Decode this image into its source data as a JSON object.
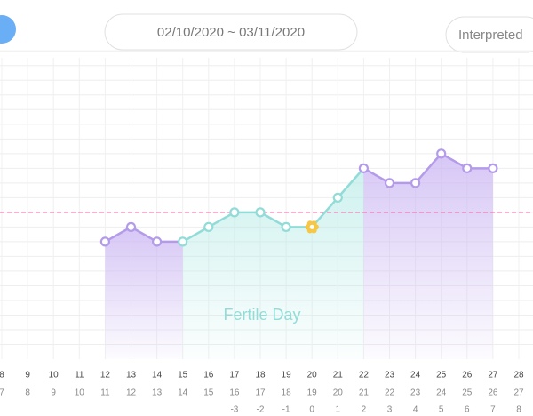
{
  "header": {
    "date_range": "02/10/2020 ~ 03/11/2020",
    "interpreted_button": "Interpreted"
  },
  "chart_data": {
    "type": "line",
    "x": [
      8,
      9,
      10,
      11,
      12,
      13,
      14,
      15,
      16,
      17,
      18,
      19,
      20,
      21,
      22,
      23,
      24,
      25,
      26,
      27,
      28
    ],
    "cycle_days": [
      7,
      8,
      9,
      10,
      11,
      12,
      13,
      14,
      15,
      16,
      17,
      18,
      19,
      20,
      21,
      22,
      23,
      24,
      25,
      26,
      27
    ],
    "ovulation_days": [
      null,
      null,
      null,
      null,
      null,
      null,
      null,
      null,
      null,
      -3,
      -2,
      -1,
      0,
      1,
      2,
      3,
      4,
      5,
      6,
      7,
      8
    ],
    "values": [
      null,
      null,
      null,
      null,
      8,
      9,
      8,
      8,
      9,
      10,
      10,
      9,
      9,
      11,
      13,
      12,
      12,
      14,
      13,
      13,
      null
    ],
    "xlim": [
      8,
      28
    ],
    "ylim": [
      0,
      21.5
    ],
    "yticks": [
      1,
      2,
      3,
      4,
      5,
      6,
      7,
      8,
      9,
      10,
      11,
      12,
      13,
      14,
      15,
      16,
      17,
      18,
      19,
      20,
      21
    ],
    "grid": true,
    "coverline": 10,
    "fertile_window": [
      15,
      21
    ],
    "ovulation_x": 20,
    "fertile_label": "Fertile Day",
    "color": "#b49be9",
    "fertile_color": "#92dcd8",
    "coverline_color": "#dc6fa3"
  }
}
